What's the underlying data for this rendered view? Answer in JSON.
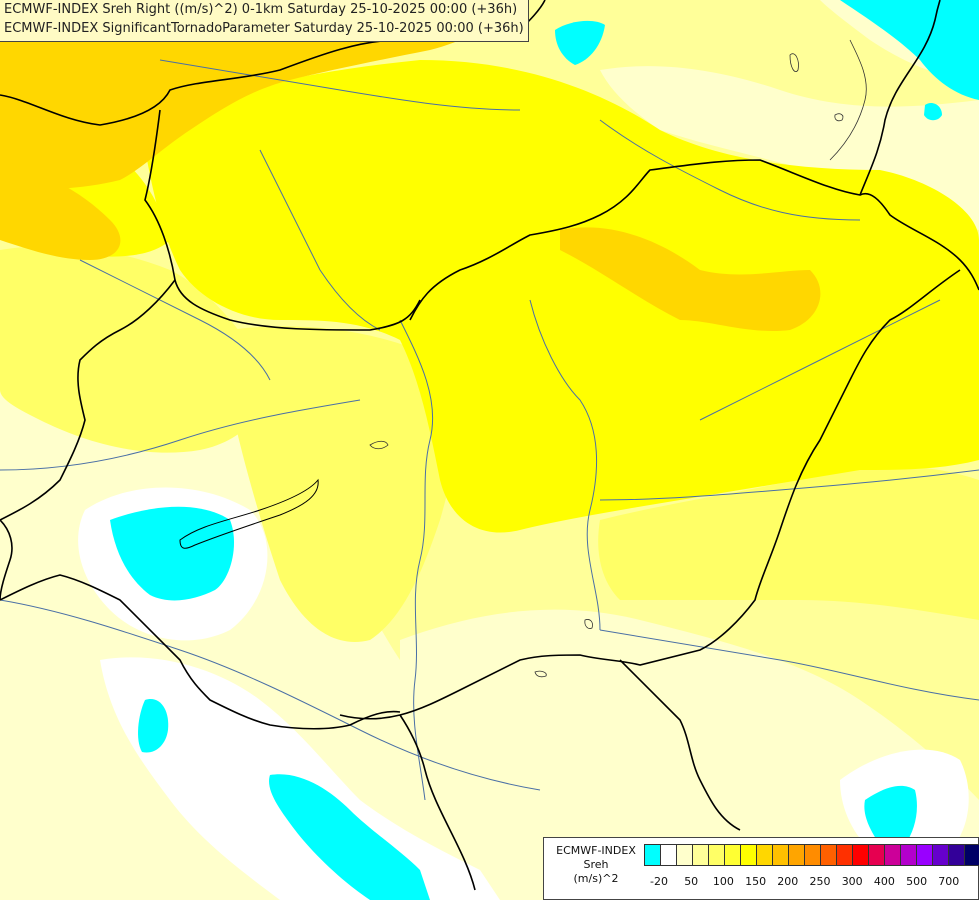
{
  "header": {
    "line1": "ECMWF-INDEX Sreh Right ((m/s)^2) 0-1km Saturday 25-10-2025 00:00 (+36h)",
    "line2": "ECMWF-INDEX SignificantTornadoParameter Saturday 25-10-2025 00:00 (+36h)"
  },
  "legend": {
    "title_line1": "ECMWF-INDEX",
    "title_line2": "Sreh",
    "title_line3": "(m/s)^2",
    "swatch_colors": [
      "#00ffff",
      "#ffffff",
      "#ffffcc",
      "#ffff99",
      "#ffff66",
      "#ffff33",
      "#ffff00",
      "#ffd700",
      "#ffc000",
      "#ffa500",
      "#ff8c00",
      "#ff6000",
      "#ff3000",
      "#ff0000",
      "#e60050",
      "#cc0099",
      "#b300cc",
      "#9900ff",
      "#6600cc",
      "#330099",
      "#000066"
    ],
    "tick_labels": [
      "-20",
      "50",
      "100",
      "150",
      "200",
      "250",
      "300",
      "400",
      "500",
      "700"
    ]
  },
  "map": {
    "field_colors": {
      "very_light": "#ffffcc",
      "light": "#ffff99",
      "medium": "#ffff66",
      "strong": "#ffff00",
      "gold": "#ffd700",
      "white": "#ffffff",
      "cyan": "#00ffff",
      "border": "#000000",
      "river": "#4a6fa5"
    }
  }
}
